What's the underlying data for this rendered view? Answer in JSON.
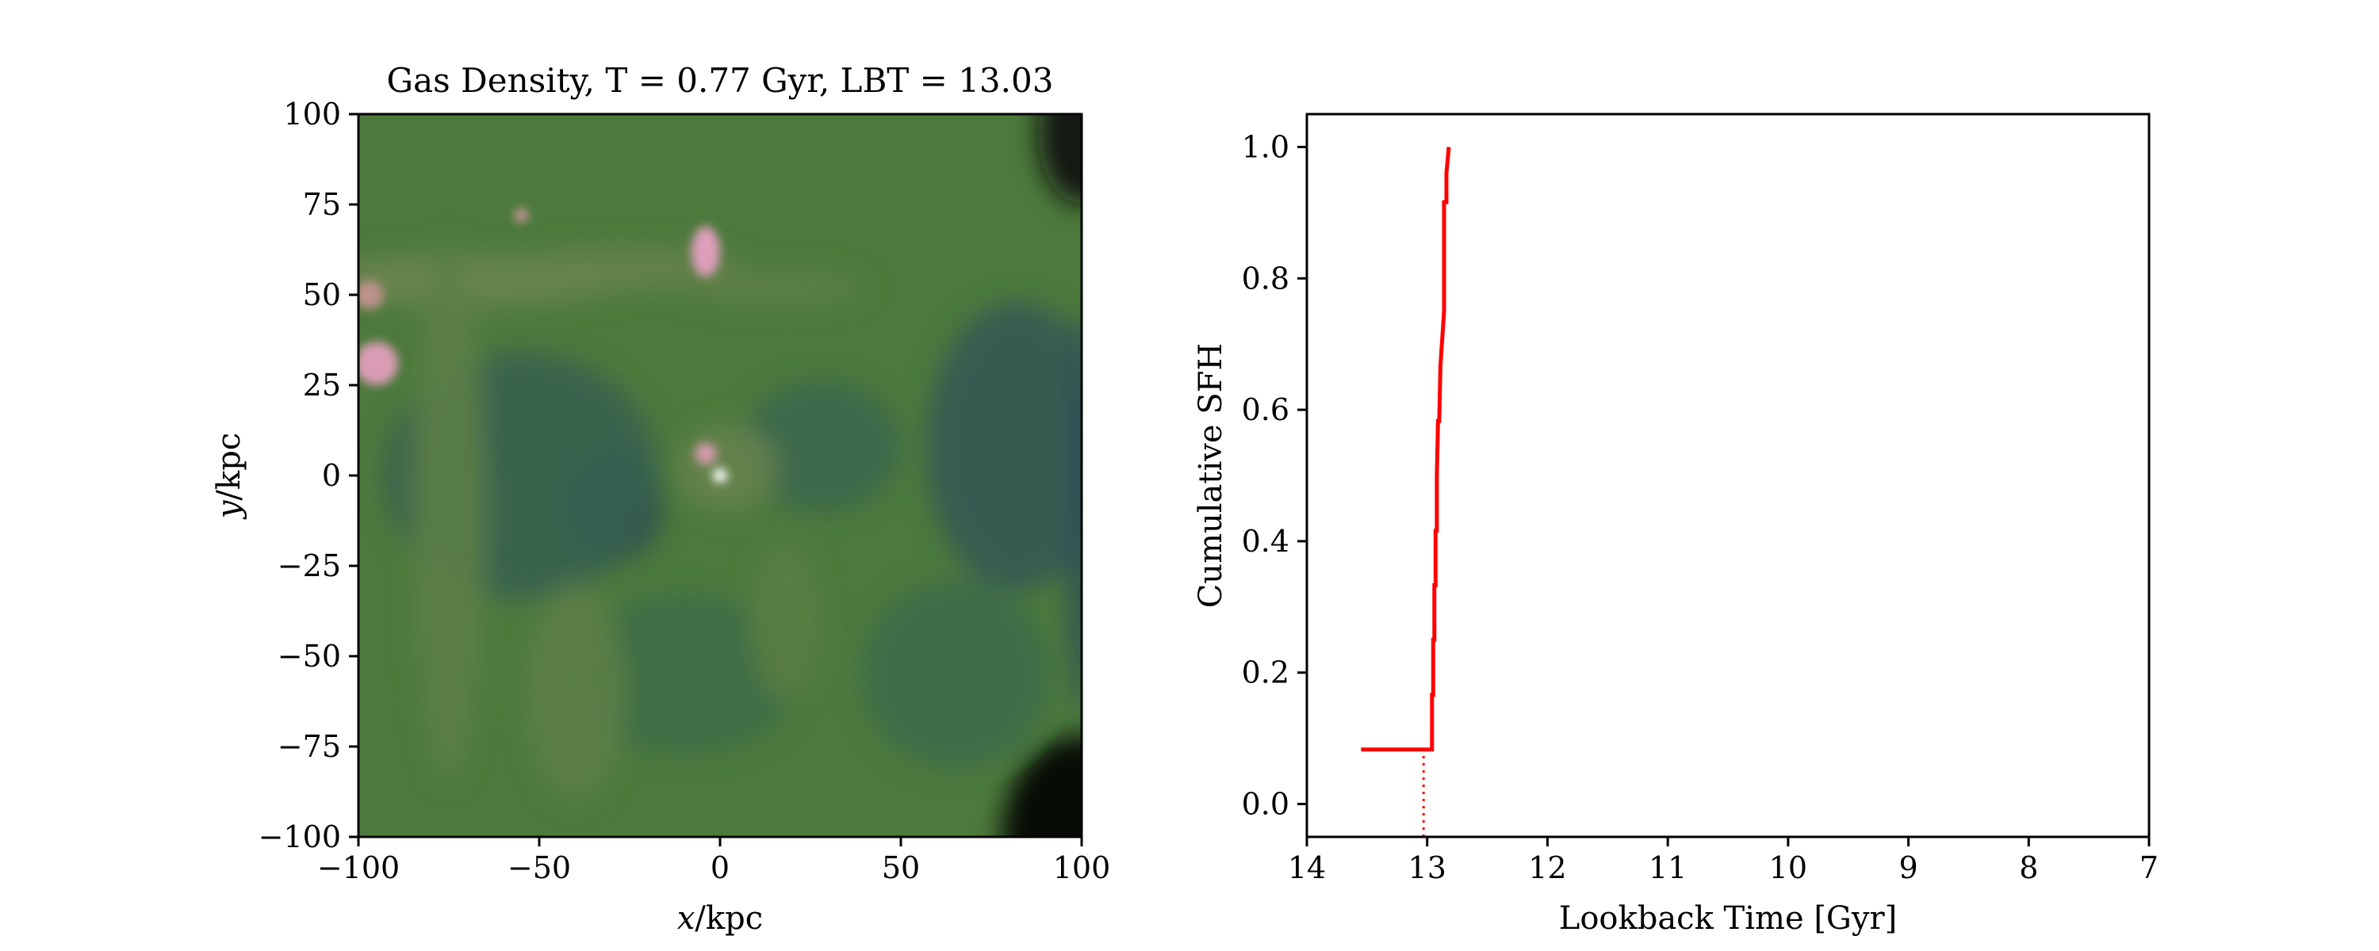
{
  "chart_data": [
    {
      "type": "heatmap",
      "title": "Gas Density, T = 0.77 Gyr, LBT = 13.03",
      "xlabel": "x/kpc",
      "ylabel": "y/kpc",
      "xlabel_var": "x",
      "ylabel_var": "y",
      "xlabel_unit": "/kpc",
      "ylabel_unit": "/kpc",
      "xlim": [
        -100,
        100
      ],
      "ylim": [
        -100,
        100
      ],
      "xticks": [
        -100,
        -50,
        0,
        50,
        100
      ],
      "xtick_labels": [
        "−100",
        "−50",
        "0",
        "50",
        "100"
      ],
      "yticks": [
        100,
        75,
        50,
        25,
        0,
        -25,
        -50,
        -75,
        -100
      ],
      "ytick_labels": [
        "100",
        "75",
        "50",
        "25",
        "0",
        "−25",
        "−50",
        "−75",
        "−100"
      ],
      "colormap": [
        "#000000",
        "#1c1426",
        "#2e4e58",
        "#3c6a4c",
        "#4c7a3c",
        "#6e8550",
        "#b28c7a",
        "#e4a0c4",
        "#ffffff"
      ],
      "background": "#4c7a3c",
      "features": [
        {
          "kind": "void",
          "x": -30,
          "y": -8,
          "rx": 14,
          "ry": 16,
          "level": 0.22
        },
        {
          "kind": "void",
          "x": -55,
          "y": 0,
          "rx": 38,
          "ry": 34,
          "level": 0.33
        },
        {
          "kind": "void",
          "x": 28,
          "y": 8,
          "rx": 22,
          "ry": 18,
          "level": 0.36
        },
        {
          "kind": "void",
          "x": 82,
          "y": 8,
          "rx": 25,
          "ry": 40,
          "level": 0.3
        },
        {
          "kind": "void",
          "x": -10,
          "y": -55,
          "rx": 32,
          "ry": 22,
          "level": 0.4
        },
        {
          "kind": "void",
          "x": 65,
          "y": -55,
          "rx": 26,
          "ry": 26,
          "level": 0.38
        },
        {
          "kind": "dense",
          "x": -70,
          "y": 54,
          "rx": 45,
          "ry": 7,
          "level": 0.62
        },
        {
          "kind": "dense",
          "x": -28,
          "y": 57,
          "rx": 35,
          "ry": 6,
          "level": 0.6
        },
        {
          "kind": "dense",
          "x": 15,
          "y": 52,
          "rx": 25,
          "ry": 5,
          "level": 0.56
        },
        {
          "kind": "dense",
          "x": -75,
          "y": -10,
          "rx": 10,
          "ry": 75,
          "level": 0.56
        },
        {
          "kind": "dense",
          "x": -40,
          "y": -60,
          "rx": 14,
          "ry": 30,
          "level": 0.56
        },
        {
          "kind": "dense",
          "x": 2,
          "y": 2,
          "rx": 14,
          "ry": 12,
          "level": 0.6
        },
        {
          "kind": "dense",
          "x": 18,
          "y": -40,
          "rx": 10,
          "ry": 22,
          "level": 0.55
        },
        {
          "kind": "dense",
          "x": -97,
          "y": 50,
          "rx": 4,
          "ry": 4,
          "level": 0.78
        },
        {
          "kind": "dense",
          "x": -95,
          "y": 31,
          "rx": 6,
          "ry": 6,
          "level": 0.85
        },
        {
          "kind": "dense",
          "x": -4,
          "y": 62,
          "rx": 4,
          "ry": 7,
          "level": 0.86
        },
        {
          "kind": "dense",
          "x": -55,
          "y": 72,
          "rx": 2,
          "ry": 2,
          "level": 0.8
        },
        {
          "kind": "dense",
          "x": -4,
          "y": 6,
          "rx": 3,
          "ry": 3,
          "level": 0.84
        },
        {
          "kind": "dense",
          "x": 0,
          "y": 0,
          "rx": 2,
          "ry": 2,
          "level": 1.0
        },
        {
          "kind": "void",
          "x": 100,
          "y": 95,
          "rx": 12,
          "ry": 20,
          "level": 0.05
        },
        {
          "kind": "void",
          "x": 100,
          "y": -100,
          "rx": 22,
          "ry": 28,
          "level": 0.0
        },
        {
          "kind": "void",
          "x": 100,
          "y": -10,
          "rx": 4,
          "ry": 55,
          "level": 0.25
        }
      ]
    },
    {
      "type": "line",
      "title": "",
      "xlabel": "Lookback Time [Gyr]",
      "ylabel": "Cumulative SFH",
      "xlim": [
        14,
        7
      ],
      "ylim": [
        -0.05,
        1.05
      ],
      "xticks": [
        14,
        13,
        12,
        11,
        10,
        9,
        8,
        7
      ],
      "yticks": [
        0.0,
        0.2,
        0.4,
        0.6,
        0.8,
        1.0
      ],
      "ytick_labels": [
        "0.0",
        "0.2",
        "0.4",
        "0.6",
        "0.8",
        "1.0"
      ],
      "grid": false,
      "series": [
        {
          "color": "#ff0000",
          "x": [
            13.55,
            12.97,
            12.96,
            12.96,
            12.95,
            12.95,
            12.94,
            12.94,
            12.93,
            12.93,
            12.92,
            12.92,
            12.91,
            12.9,
            12.89,
            12.89,
            12.86,
            12.86,
            12.84,
            12.84,
            12.82
          ],
          "y": [
            0.083,
            0.083,
            0.083,
            0.166,
            0.166,
            0.25,
            0.25,
            0.333,
            0.333,
            0.416,
            0.416,
            0.5,
            0.583,
            0.583,
            0.666,
            0.666,
            0.75,
            0.916,
            0.916,
            0.96,
            1.0
          ]
        }
      ],
      "vline": {
        "x": 13.03,
        "color": "#ff0000",
        "style": "dotted",
        "ymax": 0.083
      }
    }
  ]
}
